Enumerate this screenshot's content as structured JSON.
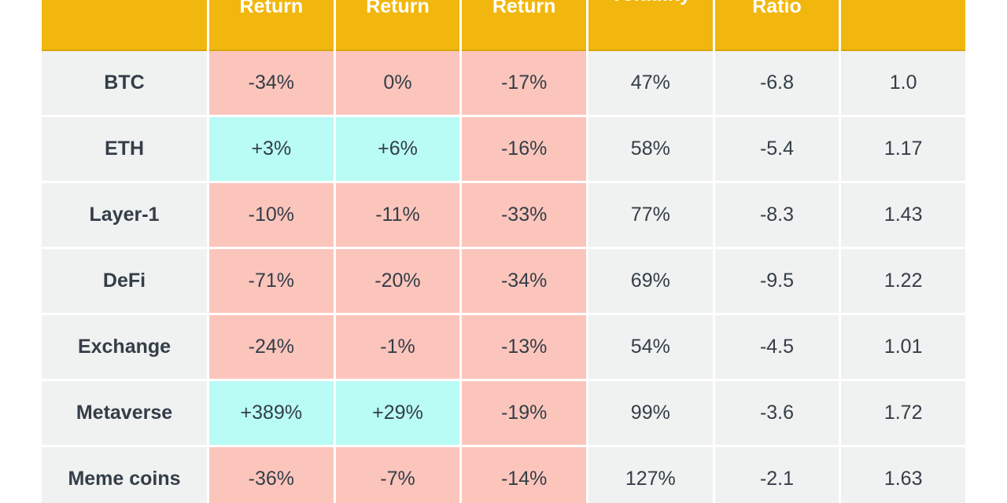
{
  "colors": {
    "header_bg": "#F2B70E",
    "header_border": "#D9A40C",
    "header_text": "#FFFFFF",
    "negative_bg": "#FCC5BC",
    "positive_bg": "#B9FBF5",
    "neutral_bg": "#F0F1F1",
    "text": "#333E47",
    "divider": "#FFFFFF",
    "page_bg": "#FFFFFF"
  },
  "table": {
    "header_note": "header row is cropped at the top of the screenshot; only the bottom line of each heading is visible",
    "columns": [
      {
        "id": "category",
        "two_line": false,
        "single": ""
      },
      {
        "id": "return-1",
        "two_line": true,
        "line1": "",
        "line2": "Return"
      },
      {
        "id": "return-2",
        "two_line": true,
        "line1": "",
        "line2": "Return"
      },
      {
        "id": "return-3",
        "two_line": true,
        "line1": "",
        "line2": "Return"
      },
      {
        "id": "volatility",
        "two_line": false,
        "single": "Volatility"
      },
      {
        "id": "ratio",
        "two_line": true,
        "line1": "",
        "line2": "Ratio"
      },
      {
        "id": "column-7",
        "two_line": false,
        "single": ""
      }
    ],
    "rows": [
      {
        "label": "BTC",
        "returns": [
          {
            "value": "-34%",
            "tone": "negative"
          },
          {
            "value": "0%",
            "tone": "negative"
          },
          {
            "value": "-17%",
            "tone": "negative"
          }
        ],
        "stats": [
          "47%",
          "-6.8",
          "1.0"
        ]
      },
      {
        "label": "ETH",
        "returns": [
          {
            "value": "+3%",
            "tone": "positive"
          },
          {
            "value": "+6%",
            "tone": "positive"
          },
          {
            "value": "-16%",
            "tone": "negative"
          }
        ],
        "stats": [
          "58%",
          "-5.4",
          "1.17"
        ]
      },
      {
        "label": "Layer-1",
        "returns": [
          {
            "value": "-10%",
            "tone": "negative"
          },
          {
            "value": "-11%",
            "tone": "negative"
          },
          {
            "value": "-33%",
            "tone": "negative"
          }
        ],
        "stats": [
          "77%",
          "-8.3",
          "1.43"
        ]
      },
      {
        "label": "DeFi",
        "returns": [
          {
            "value": "-71%",
            "tone": "negative"
          },
          {
            "value": "-20%",
            "tone": "negative"
          },
          {
            "value": "-34%",
            "tone": "negative"
          }
        ],
        "stats": [
          "69%",
          "-9.5",
          "1.22"
        ]
      },
      {
        "label": "Exchange",
        "returns": [
          {
            "value": "-24%",
            "tone": "negative"
          },
          {
            "value": "-1%",
            "tone": "negative"
          },
          {
            "value": "-13%",
            "tone": "negative"
          }
        ],
        "stats": [
          "54%",
          "-4.5",
          "1.01"
        ]
      },
      {
        "label": "Metaverse",
        "returns": [
          {
            "value": "+389%",
            "tone": "positive"
          },
          {
            "value": "+29%",
            "tone": "positive"
          },
          {
            "value": "-19%",
            "tone": "negative"
          }
        ],
        "stats": [
          "99%",
          "-3.6",
          "1.72"
        ]
      },
      {
        "label": "Meme coins",
        "returns": [
          {
            "value": "-36%",
            "tone": "negative"
          },
          {
            "value": "-7%",
            "tone": "negative"
          },
          {
            "value": "-14%",
            "tone": "negative"
          }
        ],
        "stats": [
          "127%",
          "-2.1",
          "1.63"
        ]
      }
    ]
  },
  "chart_data": {
    "type": "table",
    "columns": [
      "",
      "Return",
      "Return",
      "Return",
      "Volatility",
      "Ratio",
      ""
    ],
    "rows": [
      [
        "BTC",
        "-34%",
        "0%",
        "-17%",
        "47%",
        "-6.8",
        "1.0"
      ],
      [
        "ETH",
        "+3%",
        "+6%",
        "-16%",
        "58%",
        "-5.4",
        "1.17"
      ],
      [
        "Layer-1",
        "-10%",
        "-11%",
        "-33%",
        "77%",
        "-8.3",
        "1.43"
      ],
      [
        "DeFi",
        "-71%",
        "-20%",
        "-34%",
        "69%",
        "-9.5",
        "1.22"
      ],
      [
        "Exchange",
        "-24%",
        "-1%",
        "-13%",
        "54%",
        "-4.5",
        "1.01"
      ],
      [
        "Metaverse",
        "+389%",
        "+29%",
        "-19%",
        "99%",
        "-3.6",
        "1.72"
      ],
      [
        "Meme coins",
        "-36%",
        "-7%",
        "-14%",
        "127%",
        "-2.1",
        "1.63"
      ]
    ],
    "layout_hints": {
      "highlight_positive": "cyan cells on return columns",
      "highlight_negative": "pink cells on return columns",
      "header_cropped_at_top": true,
      "last_row_cropped_at_bottom": true
    }
  }
}
